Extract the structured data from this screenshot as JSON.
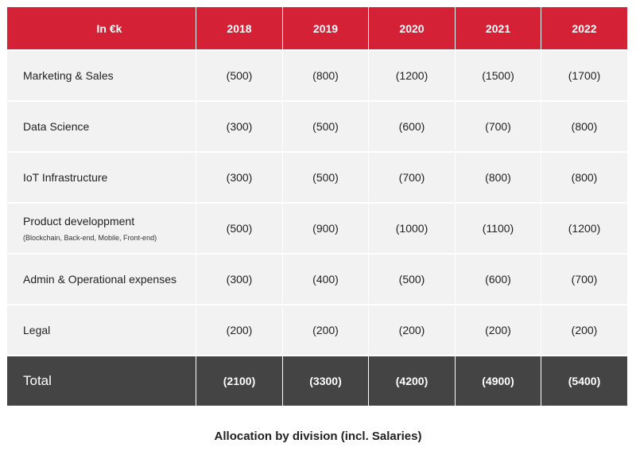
{
  "table": {
    "header": {
      "label": "In €k",
      "years": [
        "2018",
        "2019",
        "2020",
        "2021",
        "2022"
      ]
    },
    "rows": [
      {
        "label": "Marketing & Sales",
        "sub": "",
        "values": [
          "(500)",
          "(800)",
          "(1200)",
          "(1500)",
          "(1700)"
        ]
      },
      {
        "label": "Data Science",
        "sub": "",
        "values": [
          "(300)",
          "(500)",
          "(600)",
          "(700)",
          "(800)"
        ]
      },
      {
        "label": "IoT Infrastructure",
        "sub": "",
        "values": [
          "(300)",
          "(500)",
          "(700)",
          "(800)",
          "(800)"
        ]
      },
      {
        "label": "Product developpment",
        "sub": "(Blockchain, Back-end, Mobile, Front-end)",
        "values": [
          "(500)",
          "(900)",
          "(1000)",
          "(1100)",
          "(1200)"
        ]
      },
      {
        "label": "Admin & Operational expenses",
        "sub": "",
        "values": [
          "(300)",
          "(400)",
          "(500)",
          "(600)",
          "(700)"
        ]
      },
      {
        "label": "Legal",
        "sub": "",
        "values": [
          "(200)",
          "(200)",
          "(200)",
          "(200)",
          "(200)"
        ]
      }
    ],
    "total": {
      "label": "Total",
      "values": [
        "(2100)",
        "(3300)",
        "(4200)",
        "(4900)",
        "(5400)"
      ]
    }
  },
  "caption": "Allocation by division (incl. Salaries)",
  "colors": {
    "header_bg": "#d42135",
    "total_bg": "#444444",
    "row_bg": "#f2f2f3"
  }
}
